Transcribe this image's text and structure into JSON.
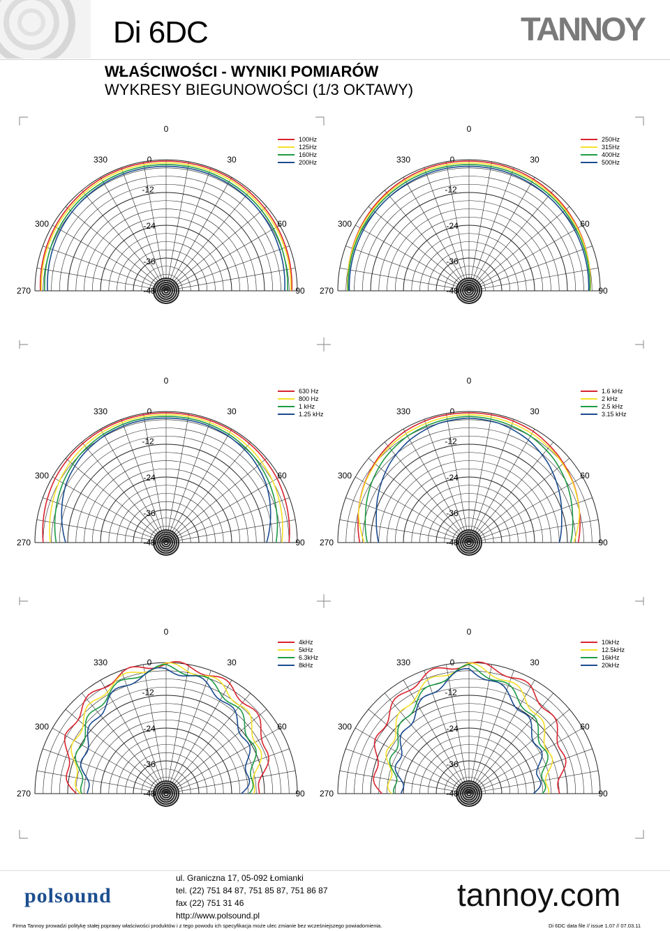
{
  "header": {
    "title": "Di 6DC",
    "subtitle1": "WŁAŚCIWOŚCI - WYNIKI POMIARÓW",
    "subtitle2": "WYKRESY BIEGUNOWOŚCI (1/3 OKTAWY)",
    "brand": "TANNOY"
  },
  "colors": {
    "red": "#d9232e",
    "yellow": "#f5e12a",
    "green": "#1c9a44",
    "blue": "#1b4b8f"
  },
  "chart_data": [
    {
      "type": "polar",
      "angle_labels": [
        "0",
        "330",
        "30",
        "300",
        "60",
        "270",
        "90"
      ],
      "radial_labels": [
        "0",
        "-12",
        "-24",
        "-36",
        "-48"
      ],
      "series": [
        {
          "name": "100Hz",
          "color": "red",
          "values": [
            0,
            0,
            0,
            -0.3,
            -0.6,
            -1.0,
            -1.5
          ]
        },
        {
          "name": "125Hz",
          "color": "yellow",
          "values": [
            0,
            0,
            0,
            -0.3,
            -0.5,
            -0.8,
            -1.2
          ]
        },
        {
          "name": "160Hz",
          "color": "green",
          "values": [
            0,
            0,
            -0.2,
            -0.4,
            -0.8,
            -1.3,
            -1.8
          ]
        },
        {
          "name": "200Hz",
          "color": "blue",
          "values": [
            0,
            0,
            -0.2,
            -0.5,
            -1.0,
            -1.6,
            -2.2
          ]
        }
      ]
    },
    {
      "type": "polar",
      "angle_labels": [
        "0",
        "330",
        "30",
        "300",
        "60",
        "270",
        "90"
      ],
      "radial_labels": [
        "0",
        "-12",
        "-24",
        "-36",
        "-48"
      ],
      "series": [
        {
          "name": "250Hz",
          "color": "red",
          "values": [
            0,
            0,
            -0.3,
            -0.8,
            -1.5,
            -2.4,
            -3.2
          ]
        },
        {
          "name": "315Hz",
          "color": "yellow",
          "values": [
            0,
            0,
            -0.2,
            -0.6,
            -1.1,
            -1.8,
            -2.5
          ]
        },
        {
          "name": "400Hz",
          "color": "green",
          "values": [
            0,
            0,
            -0.2,
            -0.5,
            -1.0,
            -1.5,
            -2.0
          ]
        },
        {
          "name": "500Hz",
          "color": "blue",
          "values": [
            0,
            0,
            -0.3,
            -0.6,
            -1.0,
            -1.4,
            -1.8
          ]
        }
      ]
    },
    {
      "type": "polar",
      "angle_labels": [
        "0",
        "330",
        "30",
        "300",
        "60",
        "270",
        "90"
      ],
      "radial_labels": [
        "0",
        "-12",
        "-24",
        "-36",
        "-48"
      ],
      "series": [
        {
          "name": "630 Hz",
          "color": "red",
          "values": [
            0,
            0,
            0,
            -0.2,
            -0.6,
            -1.5,
            -2.5
          ]
        },
        {
          "name": "800 Hz",
          "color": "yellow",
          "values": [
            0,
            0,
            -0.2,
            -0.8,
            -1.8,
            -3.2,
            -4.5
          ]
        },
        {
          "name": "1 kHz",
          "color": "green",
          "values": [
            0,
            0,
            -0.4,
            -1.2,
            -2.6,
            -4.3,
            -6.0
          ]
        },
        {
          "name": "1.25 kHz",
          "color": "blue",
          "values": [
            0,
            0,
            -0.4,
            -1.4,
            -3.2,
            -6.0,
            -8.8
          ]
        }
      ]
    },
    {
      "type": "polar",
      "angle_labels": [
        "0",
        "330",
        "30",
        "300",
        "60",
        "270",
        "90"
      ],
      "radial_labels": [
        "0",
        "-12",
        "-24",
        "-36",
        "-48"
      ],
      "series": [
        {
          "name": "1.6 kHz",
          "color": "red",
          "values": [
            0,
            0,
            -0.5,
            -1.8,
            -3.5,
            -5.6,
            -7.5
          ]
        },
        {
          "name": "2 kHz",
          "color": "yellow",
          "values": [
            0,
            -0.3,
            -0.8,
            -1.6,
            -3.0,
            -5.0,
            -8.5
          ]
        },
        {
          "name": "2.5 kHz",
          "color": "green",
          "values": [
            0,
            -0.5,
            -1.2,
            -2.6,
            -4.6,
            -7.0,
            -9.0
          ]
        },
        {
          "name": "3.15 kHz",
          "color": "blue",
          "values": [
            0,
            -0.6,
            -2.2,
            -4.6,
            -7.6,
            -10.5,
            -12.5
          ]
        }
      ]
    },
    {
      "type": "polar",
      "angle_labels": [
        "0",
        "330",
        "30",
        "300",
        "60",
        "270",
        "90"
      ],
      "radial_labels": [
        "0",
        "-12",
        "-24",
        "-36",
        "-48"
      ],
      "series": [
        {
          "name": "4kHz",
          "color": "red",
          "values": [
            0,
            -0.5,
            -1.8,
            -3.5,
            -6.0,
            -10.0,
            -14.0
          ]
        },
        {
          "name": "5kHz",
          "color": "yellow",
          "values": [
            0,
            -1.0,
            -2.8,
            -5.5,
            -8.5,
            -12.0,
            -16.0
          ]
        },
        {
          "name": "6.3kHz",
          "color": "green",
          "values": [
            0,
            -1.5,
            -4.0,
            -7.0,
            -10.0,
            -13.0,
            -16.5
          ]
        },
        {
          "name": "8kHz",
          "color": "blue",
          "values": [
            0,
            -2.0,
            -5.0,
            -8.5,
            -11.5,
            -14.5,
            -17.5
          ]
        }
      ]
    },
    {
      "type": "polar",
      "angle_labels": [
        "0",
        "330",
        "30",
        "300",
        "60",
        "270",
        "90"
      ],
      "radial_labels": [
        "0",
        "-12",
        "-24",
        "-36",
        "-48"
      ],
      "series": [
        {
          "name": "10kHz",
          "color": "red",
          "values": [
            0,
            -1.0,
            -3.0,
            -6.0,
            -9.0,
            -12.0,
            -15.0
          ]
        },
        {
          "name": "12.5kHz",
          "color": "yellow",
          "values": [
            0,
            -2.5,
            -6.0,
            -10.0,
            -13.5,
            -16.5,
            -19.0
          ]
        },
        {
          "name": "16kHz",
          "color": "green",
          "values": [
            0,
            -3.5,
            -7.5,
            -11.5,
            -14.5,
            -17.5,
            -20.0
          ]
        },
        {
          "name": "20kHz",
          "color": "blue",
          "values": [
            0,
            -4.5,
            -9.0,
            -13.0,
            -16.0,
            -19.0,
            -21.5
          ]
        }
      ]
    }
  ],
  "footer": {
    "address": "ul. Graniczna 17, 05-092 Łomianki",
    "tel": "tel. (22) 751 84 87, 751 85 87, 751 86 87",
    "fax": "fax (22) 751 31 46",
    "web": "http://www.polsound.pl",
    "distributor": "polsound",
    "site": "tannoy.com",
    "disclaimer": "Firma Tannoy prowadzi politykę stałej poprawy właściwości produktów i z tego powodu ich specyfikacja może ulec zmianie bez wcześniejszego powiadomienia.",
    "fileinfo": "Di 6DC data file // issue 1.07 // 07.03.11"
  }
}
